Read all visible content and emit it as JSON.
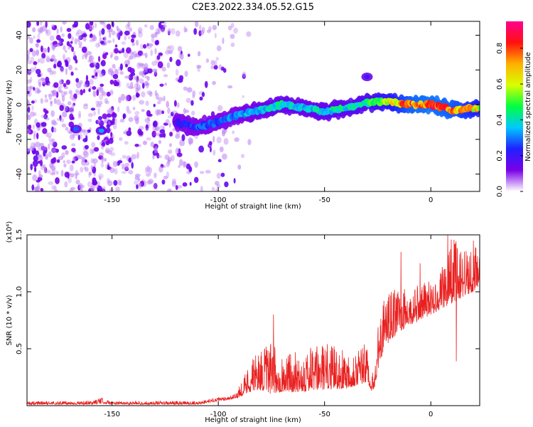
{
  "title": "C2E3.2022.334.05.52.G15",
  "colors": {
    "snr_line": "#e8201f",
    "axis": "#000000",
    "colormap": [
      "#ffffff",
      "#7a00e8",
      "#2020ff",
      "#00c8ff",
      "#00ff40",
      "#d8ff00",
      "#ffb000",
      "#ff1010",
      "#ff0090"
    ]
  },
  "chart_data": [
    {
      "type": "heatmap",
      "name": "spectrogram",
      "xlabel": "Height of straight line (km)",
      "ylabel": "Frequency (Hz)",
      "xlim": [
        -190,
        23
      ],
      "ylim": [
        -50,
        48
      ],
      "x_ticks": [
        -150,
        -100,
        -50,
        0
      ],
      "y_ticks": [
        -40,
        -20,
        0,
        20,
        40
      ],
      "colorbar": {
        "label": "Normalized spectral amplitude",
        "range": [
          0.0,
          0.95
        ],
        "ticks": [
          0.0,
          0.2,
          0.4,
          0.6,
          0.8
        ]
      },
      "noise_region_x": [
        -190,
        -95
      ],
      "signal_band": {
        "x": [
          -120,
          -110,
          -100,
          -90,
          -80,
          -70,
          -60,
          -50,
          -40,
          -30,
          -20,
          -10,
          0,
          10,
          23
        ],
        "center_freq": [
          -10,
          -13,
          -10,
          -6,
          -3,
          0,
          -2,
          -4,
          -2,
          1,
          2,
          0,
          0,
          -3,
          -2
        ],
        "amplitude": [
          0.2,
          0.3,
          0.3,
          0.35,
          0.4,
          0.45,
          0.4,
          0.45,
          0.45,
          0.5,
          0.65,
          0.85,
          0.9,
          0.85,
          0.7
        ]
      },
      "isolated_features": [
        {
          "x": -167,
          "freq": -14,
          "amplitude": 0.3
        },
        {
          "x": -155,
          "freq": -15,
          "amplitude": 0.35
        },
        {
          "x": -30,
          "freq": 16,
          "amplitude": 0.2
        }
      ]
    },
    {
      "type": "line",
      "name": "snr",
      "xlabel": "Height of straight line (km)",
      "ylabel": "SNR (10 * v/v)",
      "y_multiplier": "(x10⁴)",
      "xlim": [
        -190,
        23
      ],
      "ylim": [
        0,
        1.5
      ],
      "x_ticks": [
        -150,
        -100,
        -50,
        0
      ],
      "y_ticks": [
        0.5,
        1.0,
        1.5
      ],
      "envelope": {
        "x": [
          -190,
          -160,
          -155,
          -150,
          -110,
          -100,
          -92,
          -85,
          -80,
          -75,
          -70,
          -60,
          -50,
          -40,
          -30,
          -27,
          -24,
          -20,
          -15,
          -10,
          -5,
          0,
          5,
          10,
          15,
          20,
          23
        ],
        "baseline": [
          0.01,
          0.01,
          0.02,
          0.01,
          0.01,
          0.04,
          0.06,
          0.12,
          0.14,
          0.1,
          0.12,
          0.12,
          0.14,
          0.15,
          0.2,
          0.1,
          0.4,
          0.55,
          0.65,
          0.7,
          0.75,
          0.8,
          0.85,
          0.9,
          0.95,
          1.0,
          1.05
        ],
        "peak": [
          0.04,
          0.04,
          0.07,
          0.04,
          0.04,
          0.07,
          0.1,
          0.4,
          0.5,
          0.55,
          0.45,
          0.5,
          0.55,
          0.5,
          0.55,
          0.25,
          0.85,
          1.0,
          1.05,
          1.0,
          1.08,
          1.1,
          1.2,
          1.5,
          1.4,
          1.42,
          1.35
        ]
      },
      "notable_points": [
        {
          "x": -74,
          "y": 0.8
        },
        {
          "x": -14,
          "y": 1.35
        },
        {
          "x": -5,
          "y": 1.25
        },
        {
          "x": 8,
          "y": 1.5
        },
        {
          "x": 12,
          "y": 0.39
        },
        {
          "x": 20,
          "y": 1.45
        }
      ]
    }
  ]
}
